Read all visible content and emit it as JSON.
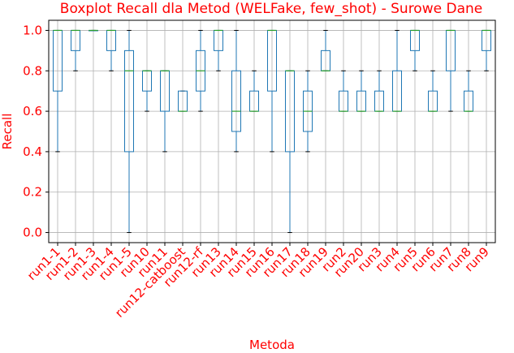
{
  "chart_data": {
    "type": "boxplot",
    "title": "Boxplot Recall dla Metod (WELFake, few_shot) - Surowe Dane",
    "xlabel": "Metoda",
    "ylabel": "Recall",
    "ylim": [
      -0.05,
      1.05
    ],
    "yticks": [
      "0.0",
      "0.2",
      "0.4",
      "0.6",
      "0.8",
      "1.0"
    ],
    "grid": true,
    "colors": {
      "box": "#1f77b4",
      "median": "#2ca02c",
      "grid": "#b0b0b0",
      "text": "#ff0000",
      "axis": "#000000"
    },
    "boxes": [
      {
        "label": "run1-1",
        "whislo": 0.4,
        "q1": 0.7,
        "med": 1.0,
        "q3": 1.0,
        "whishi": 1.0
      },
      {
        "label": "run1-2",
        "whislo": 0.8,
        "q1": 0.9,
        "med": 1.0,
        "q3": 1.0,
        "whishi": 1.0
      },
      {
        "label": "run1-3",
        "whislo": 1.0,
        "q1": 1.0,
        "med": 1.0,
        "q3": 1.0,
        "whishi": 1.0
      },
      {
        "label": "run1-4",
        "whislo": 0.8,
        "q1": 0.9,
        "med": 1.0,
        "q3": 1.0,
        "whishi": 1.0
      },
      {
        "label": "run1-5",
        "whislo": 0.0,
        "q1": 0.4,
        "med": 0.8,
        "q3": 0.9,
        "whishi": 1.0
      },
      {
        "label": "run10",
        "whislo": 0.6,
        "q1": 0.7,
        "med": 0.8,
        "q3": 0.8,
        "whishi": 0.8
      },
      {
        "label": "run11",
        "whislo": 0.4,
        "q1": 0.6,
        "med": 0.8,
        "q3": 0.8,
        "whishi": 0.8
      },
      {
        "label": "run12-catboost",
        "whislo": 0.6,
        "q1": 0.6,
        "med": 0.6,
        "q3": 0.7,
        "whishi": 0.7
      },
      {
        "label": "run12-rf",
        "whislo": 0.6,
        "q1": 0.7,
        "med": 0.8,
        "q3": 0.9,
        "whishi": 1.0
      },
      {
        "label": "run13",
        "whislo": 0.8,
        "q1": 0.9,
        "med": 1.0,
        "q3": 1.0,
        "whishi": 1.0
      },
      {
        "label": "run14",
        "whislo": 0.4,
        "q1": 0.5,
        "med": 0.6,
        "q3": 0.8,
        "whishi": 1.0
      },
      {
        "label": "run15",
        "whislo": 0.6,
        "q1": 0.6,
        "med": 0.6,
        "q3": 0.7,
        "whishi": 0.8
      },
      {
        "label": "run16",
        "whislo": 0.4,
        "q1": 0.7,
        "med": 1.0,
        "q3": 1.0,
        "whishi": 1.0
      },
      {
        "label": "run17",
        "whislo": 0.0,
        "q1": 0.4,
        "med": 0.8,
        "q3": 0.8,
        "whishi": 0.8
      },
      {
        "label": "run18",
        "whislo": 0.4,
        "q1": 0.5,
        "med": 0.6,
        "q3": 0.7,
        "whishi": 0.8
      },
      {
        "label": "run19",
        "whislo": 0.8,
        "q1": 0.8,
        "med": 0.8,
        "q3": 0.9,
        "whishi": 1.0
      },
      {
        "label": "run2",
        "whislo": 0.6,
        "q1": 0.6,
        "med": 0.6,
        "q3": 0.7,
        "whishi": 0.8
      },
      {
        "label": "run20",
        "whislo": 0.6,
        "q1": 0.6,
        "med": 0.6,
        "q3": 0.7,
        "whishi": 0.8
      },
      {
        "label": "run3",
        "whislo": 0.6,
        "q1": 0.6,
        "med": 0.6,
        "q3": 0.7,
        "whishi": 0.8
      },
      {
        "label": "run4",
        "whislo": 0.6,
        "q1": 0.6,
        "med": 0.6,
        "q3": 0.8,
        "whishi": 1.0
      },
      {
        "label": "run5",
        "whislo": 0.8,
        "q1": 0.9,
        "med": 1.0,
        "q3": 1.0,
        "whishi": 1.0
      },
      {
        "label": "run6",
        "whislo": 0.6,
        "q1": 0.6,
        "med": 0.6,
        "q3": 0.7,
        "whishi": 0.8
      },
      {
        "label": "run7",
        "whislo": 0.6,
        "q1": 0.8,
        "med": 1.0,
        "q3": 1.0,
        "whishi": 1.0
      },
      {
        "label": "run8",
        "whislo": 0.6,
        "q1": 0.6,
        "med": 0.6,
        "q3": 0.7,
        "whishi": 0.8
      },
      {
        "label": "run9",
        "whislo": 0.8,
        "q1": 0.9,
        "med": 1.0,
        "q3": 1.0,
        "whishi": 1.0
      }
    ]
  }
}
